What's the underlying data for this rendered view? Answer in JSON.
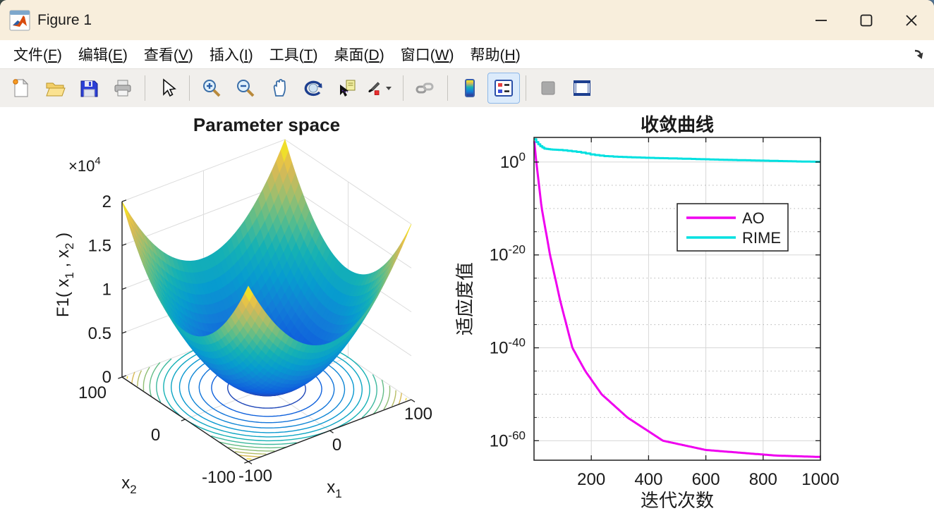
{
  "window": {
    "title": "Figure 1",
    "controls": [
      {
        "name": "minimize-button",
        "icon": "minimize-icon"
      },
      {
        "name": "maximize-button",
        "icon": "maximize-icon"
      },
      {
        "name": "close-button",
        "icon": "close-icon"
      }
    ]
  },
  "menubar": {
    "items": [
      {
        "label": "文件",
        "mnemonic": "F"
      },
      {
        "label": "编辑",
        "mnemonic": "E"
      },
      {
        "label": "查看",
        "mnemonic": "V"
      },
      {
        "label": "插入",
        "mnemonic": "I"
      },
      {
        "label": "工具",
        "mnemonic": "T"
      },
      {
        "label": "桌面",
        "mnemonic": "D"
      },
      {
        "label": "窗口",
        "mnemonic": "W"
      },
      {
        "label": "帮助",
        "mnemonic": "H"
      }
    ],
    "dock_icon": "dock-figure-arrow-icon"
  },
  "toolbar": {
    "buttons": [
      {
        "name": "new-figure-button",
        "icon": "new-doc"
      },
      {
        "name": "open-file-button",
        "icon": "open-folder"
      },
      {
        "name": "save-figure-button",
        "icon": "save-floppy"
      },
      {
        "name": "print-figure-button",
        "icon": "printer"
      },
      {
        "separator": true
      },
      {
        "name": "edit-plot-button",
        "icon": "cursor-arrow"
      },
      {
        "separator": true
      },
      {
        "name": "zoom-in-button",
        "icon": "zoom-in"
      },
      {
        "name": "zoom-out-button",
        "icon": "zoom-out"
      },
      {
        "name": "pan-button",
        "icon": "pan-hand"
      },
      {
        "name": "rotate-3d-button",
        "icon": "rotate-3d"
      },
      {
        "name": "data-cursor-button",
        "icon": "datatip"
      },
      {
        "name": "brush-data-button",
        "icon": "brush",
        "dropdown": true
      },
      {
        "separator": true
      },
      {
        "name": "link-plot-button",
        "icon": "link-chain"
      },
      {
        "separator": true
      },
      {
        "name": "insert-colorbar-button",
        "icon": "colorbar"
      },
      {
        "name": "insert-legend-button",
        "icon": "legend-box",
        "state": "active"
      },
      {
        "separator": true
      },
      {
        "name": "hide-plot-tools-button",
        "icon": "gray-square",
        "state": "disabled"
      },
      {
        "name": "show-plot-tools-button",
        "icon": "dock-window"
      }
    ]
  },
  "colors": {
    "titlebar_bg": "#f8eedc",
    "ao_line": "#ef00ef",
    "rime_line": "#00e0e0",
    "grid_major": "#d7d7d7",
    "grid_minor": "#b5b5b5",
    "axis": "#1f1f1f",
    "wall_grid": "#dcdcdc"
  },
  "chart_data": [
    {
      "type": "surface3d",
      "title": "Parameter space",
      "function": "F1(x1,x2) = x1^2 + x2^2",
      "zlabel_parts": [
        {
          "t": "F1( x"
        },
        {
          "sub": "1"
        },
        {
          "t": " , x"
        },
        {
          "sub": "2"
        },
        {
          "t": " )"
        }
      ],
      "z_multiplier": {
        "base": "×10",
        "exp": "4"
      },
      "z_ticks": [
        "0",
        "0.5",
        "1",
        "1.5",
        "2"
      ],
      "z_range": [
        0,
        20000
      ],
      "x_axis": {
        "label_parts": [
          {
            "t": "x"
          },
          {
            "sub": "1"
          }
        ],
        "ticks": [
          "-100",
          "0",
          "100"
        ],
        "range": [
          -100,
          100
        ]
      },
      "y_axis": {
        "label_parts": [
          {
            "t": "x"
          },
          {
            "sub": "2"
          }
        ],
        "ticks": [
          "100",
          "0",
          "-100"
        ],
        "range": [
          -100,
          100
        ]
      },
      "colormap": "parula",
      "contour_levels": 13,
      "view": {
        "azimuth": -37.5,
        "elevation": 30
      }
    },
    {
      "type": "line",
      "title": "收敛曲线",
      "xlabel": "迭代次数",
      "ylabel": "适应度值",
      "yscale": "log",
      "xlim": [
        0,
        1000
      ],
      "ylim_log10": [
        -64.2,
        5.3
      ],
      "x_ticks": [
        200,
        400,
        600,
        800,
        1000
      ],
      "y_ticks": [
        {
          "base": "10",
          "exp": "0",
          "log": 0
        },
        {
          "base": "10",
          "exp": "-20",
          "log": -20
        },
        {
          "base": "10",
          "exp": "-40",
          "log": -40
        },
        {
          "base": "10",
          "exp": "-60",
          "log": -60
        }
      ],
      "y_minor_logs": [
        -5,
        -10,
        -15,
        -25,
        -30,
        -35,
        -45,
        -50,
        -55
      ],
      "legend": {
        "entries": [
          "AO",
          "RIME"
        ],
        "position": "center-right"
      },
      "series": [
        {
          "name": "AO",
          "color": "#ef00ef",
          "log10_keypoints": [
            [
              1,
              4.5
            ],
            [
              8,
              0
            ],
            [
              27,
              -10
            ],
            [
              56,
              -20
            ],
            [
              92,
              -30
            ],
            [
              134,
              -40
            ],
            [
              179,
              -45
            ],
            [
              236,
              -50
            ],
            [
              326,
              -55
            ],
            [
              450,
              -60
            ],
            [
              600,
              -62
            ],
            [
              845,
              -63.2
            ],
            [
              1000,
              -63.5
            ]
          ]
        },
        {
          "name": "RIME",
          "color": "#00e0e0",
          "log10_keypoints": [
            [
              1,
              4.9
            ],
            [
              8,
              4.3
            ],
            [
              20,
              3.5
            ],
            [
              35,
              2.9
            ],
            [
              60,
              2.7
            ],
            [
              90,
              2.6
            ],
            [
              120,
              2.4
            ],
            [
              160,
              2.1
            ],
            [
              200,
              1.6
            ],
            [
              240,
              1.3
            ],
            [
              300,
              1.1
            ],
            [
              400,
              0.9
            ],
            [
              500,
              0.75
            ],
            [
              650,
              0.5
            ],
            [
              800,
              0.3
            ],
            [
              900,
              0.15
            ],
            [
              1000,
              0.05
            ]
          ]
        }
      ]
    }
  ]
}
